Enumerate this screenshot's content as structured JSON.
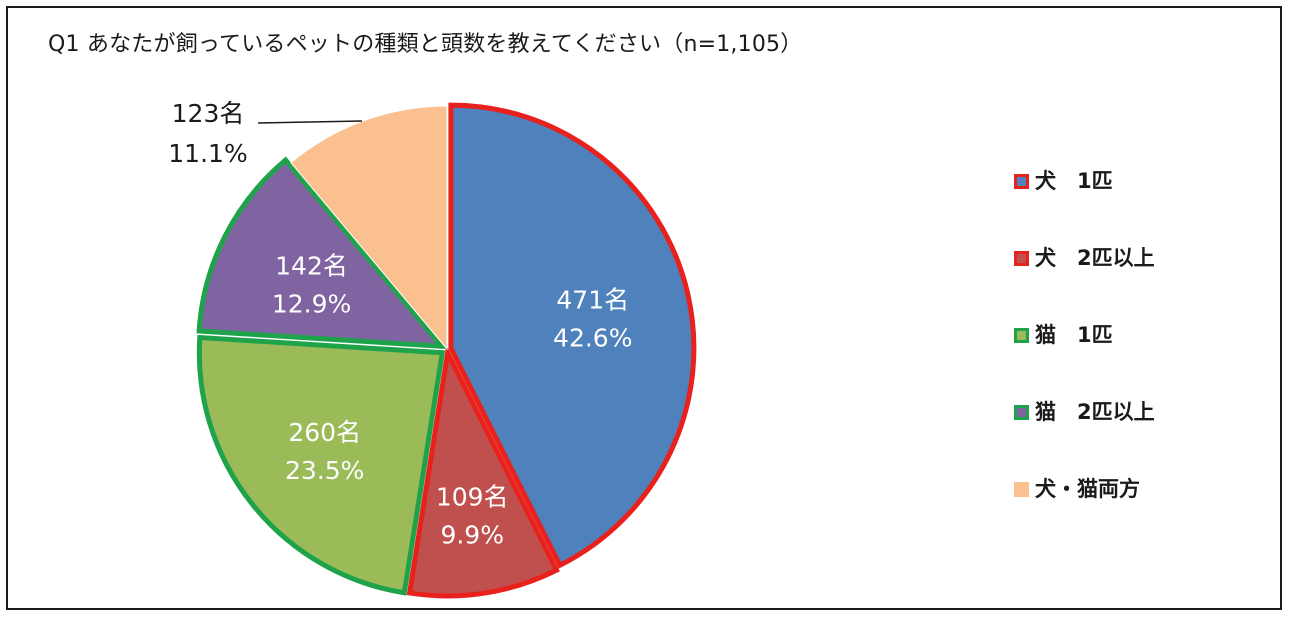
{
  "chart_data": {
    "type": "pie",
    "title": "Q1 あなたが飼っているペットの種類と頭数を教えてください（n=1,105）",
    "n": 1105,
    "slices": [
      {
        "label": "犬　1匹",
        "count_label": "471名",
        "percent_label": "42.6%",
        "value": 42.6,
        "fill": "#4F81BD",
        "outline": "#E8211C"
      },
      {
        "label": "犬　2匹以上",
        "count_label": "109名",
        "percent_label": "9.9%",
        "value": 9.9,
        "fill": "#C0504D",
        "outline": "#E8211C"
      },
      {
        "label": "猫　1匹",
        "count_label": "260名",
        "percent_label": "23.5%",
        "value": 23.5,
        "fill": "#9BBB59",
        "outline": "#1FA34A"
      },
      {
        "label": "猫　2匹以上",
        "count_label": "142名",
        "percent_label": "12.9%",
        "value": 12.9,
        "fill": "#8064A2",
        "outline": "#1FA34A"
      },
      {
        "label": "犬・猫両方",
        "count_label": "123名",
        "percent_label": "11.1%",
        "value": 11.1,
        "fill": "#FAC090",
        "outline": null
      }
    ],
    "legend_position": "right"
  }
}
